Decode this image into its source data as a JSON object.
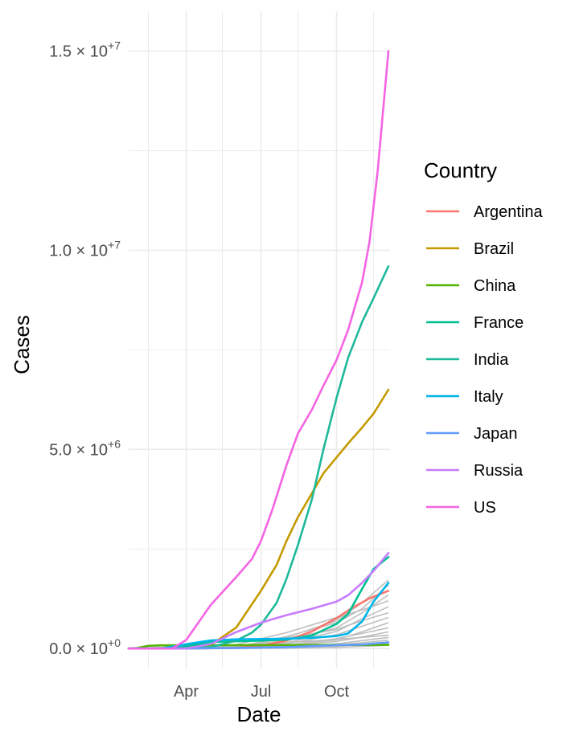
{
  "chart_data": {
    "type": "line",
    "title": "",
    "xlabel": "Date",
    "ylabel": "Cases",
    "x_ticks": [
      "Apr",
      "Jul",
      "Oct"
    ],
    "y_ticks": [
      {
        "value": 0,
        "mantissa": "0.0",
        "exponent": "0"
      },
      {
        "value": 5000000,
        "mantissa": "5.0",
        "exponent": "6"
      },
      {
        "value": 10000000,
        "mantissa": "1.0",
        "exponent": "7"
      },
      {
        "value": 15000000,
        "mantissa": "1.5",
        "exponent": "7"
      }
    ],
    "xlim": [
      "2020-01-22",
      "2020-12-05"
    ],
    "ylim": [
      -500000,
      16000000
    ],
    "grid": true,
    "legend": {
      "title": "Country",
      "position": "right"
    },
    "series": [
      {
        "name": "Argentina",
        "color": "#F8766D",
        "points": [
          [
            "2020-01-22",
            0
          ],
          [
            "2020-04-01",
            1000
          ],
          [
            "2020-06-01",
            16000
          ],
          [
            "2020-07-01",
            67000
          ],
          [
            "2020-08-01",
            200000
          ],
          [
            "2020-09-01",
            430000
          ],
          [
            "2020-10-01",
            765000
          ],
          [
            "2020-10-20",
            1020000
          ],
          [
            "2020-11-10",
            1260000
          ],
          [
            "2020-12-03",
            1450000
          ]
        ]
      },
      {
        "name": "Brazil",
        "color": "#C49A00",
        "points": [
          [
            "2020-01-22",
            0
          ],
          [
            "2020-03-15",
            200
          ],
          [
            "2020-04-01",
            6800
          ],
          [
            "2020-05-01",
            92000
          ],
          [
            "2020-06-01",
            530000
          ],
          [
            "2020-07-01",
            1450000
          ],
          [
            "2020-07-20",
            2100000
          ],
          [
            "2020-08-01",
            2700000
          ],
          [
            "2020-08-15",
            3300000
          ],
          [
            "2020-09-01",
            3900000
          ],
          [
            "2020-09-15",
            4400000
          ],
          [
            "2020-10-01",
            4800000
          ],
          [
            "2020-10-15",
            5150000
          ],
          [
            "2020-11-01",
            5550000
          ],
          [
            "2020-11-15",
            5900000
          ],
          [
            "2020-12-03",
            6500000
          ]
        ]
      },
      {
        "name": "China",
        "color": "#53B400",
        "points": [
          [
            "2020-01-22",
            548
          ],
          [
            "2020-02-01",
            14400
          ],
          [
            "2020-02-15",
            68000
          ],
          [
            "2020-03-01",
            80000
          ],
          [
            "2020-06-01",
            84000
          ],
          [
            "2020-09-01",
            90000
          ],
          [
            "2020-12-03",
            93000
          ]
        ]
      },
      {
        "name": "France",
        "color": "#00C094",
        "points": [
          [
            "2020-01-22",
            0
          ],
          [
            "2020-03-01",
            130
          ],
          [
            "2020-04-01",
            57000
          ],
          [
            "2020-05-01",
            168000
          ],
          [
            "2020-07-01",
            200000
          ],
          [
            "2020-08-01",
            225000
          ],
          [
            "2020-09-01",
            330000
          ],
          [
            "2020-10-01",
            620000
          ],
          [
            "2020-10-15",
            870000
          ],
          [
            "2020-11-01",
            1500000
          ],
          [
            "2020-11-15",
            2000000
          ],
          [
            "2020-12-03",
            2300000
          ]
        ]
      },
      {
        "name": "India",
        "color": "#1EB99A",
        "points": [
          [
            "2020-01-22",
            0
          ],
          [
            "2020-04-01",
            1900
          ],
          [
            "2020-05-01",
            37000
          ],
          [
            "2020-06-01",
            200000
          ],
          [
            "2020-06-20",
            400000
          ],
          [
            "2020-07-01",
            600000
          ],
          [
            "2020-07-20",
            1150000
          ],
          [
            "2020-08-01",
            1750000
          ],
          [
            "2020-08-15",
            2600000
          ],
          [
            "2020-09-01",
            3750000
          ],
          [
            "2020-09-15",
            5000000
          ],
          [
            "2020-10-01",
            6300000
          ],
          [
            "2020-10-15",
            7300000
          ],
          [
            "2020-11-01",
            8200000
          ],
          [
            "2020-11-15",
            8800000
          ],
          [
            "2020-12-03",
            9600000
          ]
        ]
      },
      {
        "name": "Italy",
        "color": "#00B6EB",
        "points": [
          [
            "2020-01-22",
            0
          ],
          [
            "2020-03-01",
            1700
          ],
          [
            "2020-04-01",
            110000
          ],
          [
            "2020-05-01",
            205000
          ],
          [
            "2020-06-01",
            233000
          ],
          [
            "2020-08-01",
            248000
          ],
          [
            "2020-09-01",
            270000
          ],
          [
            "2020-10-01",
            315000
          ],
          [
            "2020-10-15",
            380000
          ],
          [
            "2020-11-01",
            680000
          ],
          [
            "2020-11-15",
            1180000
          ],
          [
            "2020-12-03",
            1650000
          ]
        ]
      },
      {
        "name": "Japan",
        "color": "#619CFF",
        "points": [
          [
            "2020-01-22",
            0
          ],
          [
            "2020-04-01",
            2200
          ],
          [
            "2020-06-01",
            17000
          ],
          [
            "2020-08-01",
            37000
          ],
          [
            "2020-10-01",
            84000
          ],
          [
            "2020-11-01",
            102000
          ],
          [
            "2020-12-03",
            155000
          ]
        ]
      },
      {
        "name": "Russia",
        "color": "#C77CFF",
        "points": [
          [
            "2020-01-22",
            0
          ],
          [
            "2020-04-01",
            2800
          ],
          [
            "2020-05-01",
            115000
          ],
          [
            "2020-06-01",
            415000
          ],
          [
            "2020-07-01",
            650000
          ],
          [
            "2020-08-01",
            840000
          ],
          [
            "2020-09-01",
            1000000
          ],
          [
            "2020-10-01",
            1180000
          ],
          [
            "2020-10-15",
            1340000
          ],
          [
            "2020-11-01",
            1650000
          ],
          [
            "2020-11-15",
            1950000
          ],
          [
            "2020-12-03",
            2400000
          ]
        ]
      },
      {
        "name": "US",
        "color": "#F564E3",
        "points": [
          [
            "2020-01-22",
            1
          ],
          [
            "2020-03-15",
            3500
          ],
          [
            "2020-04-01",
            215000
          ],
          [
            "2020-05-01",
            1100000
          ],
          [
            "2020-06-01",
            1800000
          ],
          [
            "2020-06-20",
            2250000
          ],
          [
            "2020-07-01",
            2700000
          ],
          [
            "2020-07-15",
            3500000
          ],
          [
            "2020-08-01",
            4600000
          ],
          [
            "2020-08-15",
            5400000
          ],
          [
            "2020-09-01",
            6000000
          ],
          [
            "2020-09-15",
            6600000
          ],
          [
            "2020-10-01",
            7250000
          ],
          [
            "2020-10-15",
            8000000
          ],
          [
            "2020-11-01",
            9200000
          ],
          [
            "2020-11-10",
            10200000
          ],
          [
            "2020-11-20",
            12000000
          ],
          [
            "2020-12-03",
            15000000
          ]
        ]
      }
    ],
    "background_series_color": "#BEBEBE",
    "background_series": [
      {
        "points": [
          [
            "2020-01-22",
            0
          ],
          [
            "2020-06-01",
            20000
          ],
          [
            "2020-08-01",
            280000
          ],
          [
            "2020-10-01",
            700000
          ],
          [
            "2020-11-01",
            1150000
          ],
          [
            "2020-12-03",
            1720000
          ]
        ]
      },
      {
        "points": [
          [
            "2020-01-22",
            0
          ],
          [
            "2020-06-01",
            30000
          ],
          [
            "2020-08-01",
            300000
          ],
          [
            "2020-10-01",
            650000
          ],
          [
            "2020-11-01",
            1000000
          ],
          [
            "2020-12-03",
            1600000
          ]
        ]
      },
      {
        "points": [
          [
            "2020-01-22",
            0
          ],
          [
            "2020-06-01",
            50000
          ],
          [
            "2020-08-01",
            200000
          ],
          [
            "2020-10-01",
            520000
          ],
          [
            "2020-11-01",
            900000
          ],
          [
            "2020-12-03",
            1350000
          ]
        ]
      },
      {
        "points": [
          [
            "2020-01-22",
            0
          ],
          [
            "2020-06-01",
            100000
          ],
          [
            "2020-08-01",
            400000
          ],
          [
            "2020-10-01",
            780000
          ],
          [
            "2020-11-01",
            970000
          ],
          [
            "2020-12-03",
            1200000
          ]
        ]
      },
      {
        "points": [
          [
            "2020-01-22",
            0
          ],
          [
            "2020-06-01",
            40000
          ],
          [
            "2020-08-01",
            150000
          ],
          [
            "2020-10-01",
            430000
          ],
          [
            "2020-11-01",
            750000
          ],
          [
            "2020-12-03",
            1050000
          ]
        ]
      },
      {
        "points": [
          [
            "2020-01-22",
            0
          ],
          [
            "2020-06-01",
            60000
          ],
          [
            "2020-08-01",
            260000
          ],
          [
            "2020-10-01",
            480000
          ],
          [
            "2020-11-01",
            700000
          ],
          [
            "2020-12-03",
            900000
          ]
        ]
      },
      {
        "points": [
          [
            "2020-01-22",
            0
          ],
          [
            "2020-06-01",
            30000
          ],
          [
            "2020-08-01",
            120000
          ],
          [
            "2020-10-01",
            350000
          ],
          [
            "2020-11-01",
            560000
          ],
          [
            "2020-12-03",
            780000
          ]
        ]
      },
      {
        "points": [
          [
            "2020-01-22",
            0
          ],
          [
            "2020-06-01",
            20000
          ],
          [
            "2020-08-01",
            90000
          ],
          [
            "2020-10-01",
            220000
          ],
          [
            "2020-11-01",
            420000
          ],
          [
            "2020-12-03",
            650000
          ]
        ]
      },
      {
        "points": [
          [
            "2020-01-22",
            0
          ],
          [
            "2020-06-01",
            10000
          ],
          [
            "2020-08-01",
            80000
          ],
          [
            "2020-10-01",
            250000
          ],
          [
            "2020-11-01",
            380000
          ],
          [
            "2020-12-03",
            520000
          ]
        ]
      },
      {
        "points": [
          [
            "2020-01-22",
            0
          ],
          [
            "2020-06-01",
            15000
          ],
          [
            "2020-08-01",
            60000
          ],
          [
            "2020-10-01",
            180000
          ],
          [
            "2020-11-01",
            290000
          ],
          [
            "2020-12-03",
            420000
          ]
        ]
      },
      {
        "points": [
          [
            "2020-01-22",
            0
          ],
          [
            "2020-06-01",
            50000
          ],
          [
            "2020-08-01",
            150000
          ],
          [
            "2020-10-01",
            230000
          ],
          [
            "2020-11-01",
            280000
          ],
          [
            "2020-12-03",
            340000
          ]
        ]
      },
      {
        "points": [
          [
            "2020-01-22",
            0
          ],
          [
            "2020-06-01",
            10000
          ],
          [
            "2020-08-01",
            40000
          ],
          [
            "2020-10-01",
            120000
          ],
          [
            "2020-11-01",
            200000
          ],
          [
            "2020-12-03",
            280000
          ]
        ]
      },
      {
        "points": [
          [
            "2020-01-22",
            0
          ],
          [
            "2020-06-01",
            8000
          ],
          [
            "2020-08-01",
            30000
          ],
          [
            "2020-10-01",
            90000
          ],
          [
            "2020-11-01",
            150000
          ],
          [
            "2020-12-03",
            210000
          ]
        ]
      },
      {
        "points": [
          [
            "2020-01-22",
            0
          ],
          [
            "2020-06-01",
            5000
          ],
          [
            "2020-08-01",
            20000
          ],
          [
            "2020-10-01",
            60000
          ],
          [
            "2020-11-01",
            100000
          ],
          [
            "2020-12-03",
            140000
          ]
        ]
      },
      {
        "points": [
          [
            "2020-01-22",
            0
          ],
          [
            "2020-06-01",
            3000
          ],
          [
            "2020-08-01",
            10000
          ],
          [
            "2020-10-01",
            30000
          ],
          [
            "2020-11-01",
            55000
          ],
          [
            "2020-12-03",
            80000
          ]
        ]
      }
    ]
  }
}
